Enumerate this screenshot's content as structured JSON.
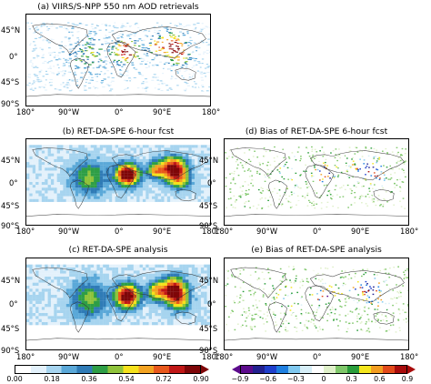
{
  "panels": {
    "a": {
      "title": "(a) VIIRS/S-NPP 550 nm AOD retrievals"
    },
    "b": {
      "title": "(b) RET-DA-SPE 6-hour fcst"
    },
    "c": {
      "title": "(c) RET-DA-SPE analysis"
    },
    "d": {
      "title": "(d) Bias of RET-DA-SPE 6-hour fcst"
    },
    "e": {
      "title": "(e) Bias of RET-DA-SPE analysis"
    }
  },
  "axes": {
    "lat_labels": [
      "45°N",
      "0°",
      "45°S",
      "90°S"
    ],
    "lon_labels": [
      "180°",
      "90°W",
      "0°",
      "90°E",
      "180°"
    ]
  },
  "colorbars": {
    "aod": {
      "ticks": [
        "0.00",
        "0.18",
        "0.36",
        "0.54",
        "0.72",
        "0.90"
      ],
      "colors": [
        "#ffffff",
        "#e3f1fb",
        "#a6d4ef",
        "#5aa8d8",
        "#2f7bb6",
        "#2e9e46",
        "#8fc33b",
        "#f5e11c",
        "#f3a321",
        "#e8581c",
        "#c01716",
        "#7e0608"
      ]
    },
    "bias": {
      "ticks": [
        "−0.9",
        "−0.6",
        "−0.3",
        "0",
        "0.3",
        "0.6",
        "0.9"
      ],
      "colors": [
        "#5c0b8c",
        "#22208f",
        "#1f3fcc",
        "#1f7fe0",
        "#7fc8ef",
        "#d6eef7",
        "#ffffff",
        "#dff0c9",
        "#7fc76a",
        "#2a9d3b",
        "#f4e61d",
        "#f29d20",
        "#e24a1a",
        "#a80b0b"
      ]
    }
  }
}
